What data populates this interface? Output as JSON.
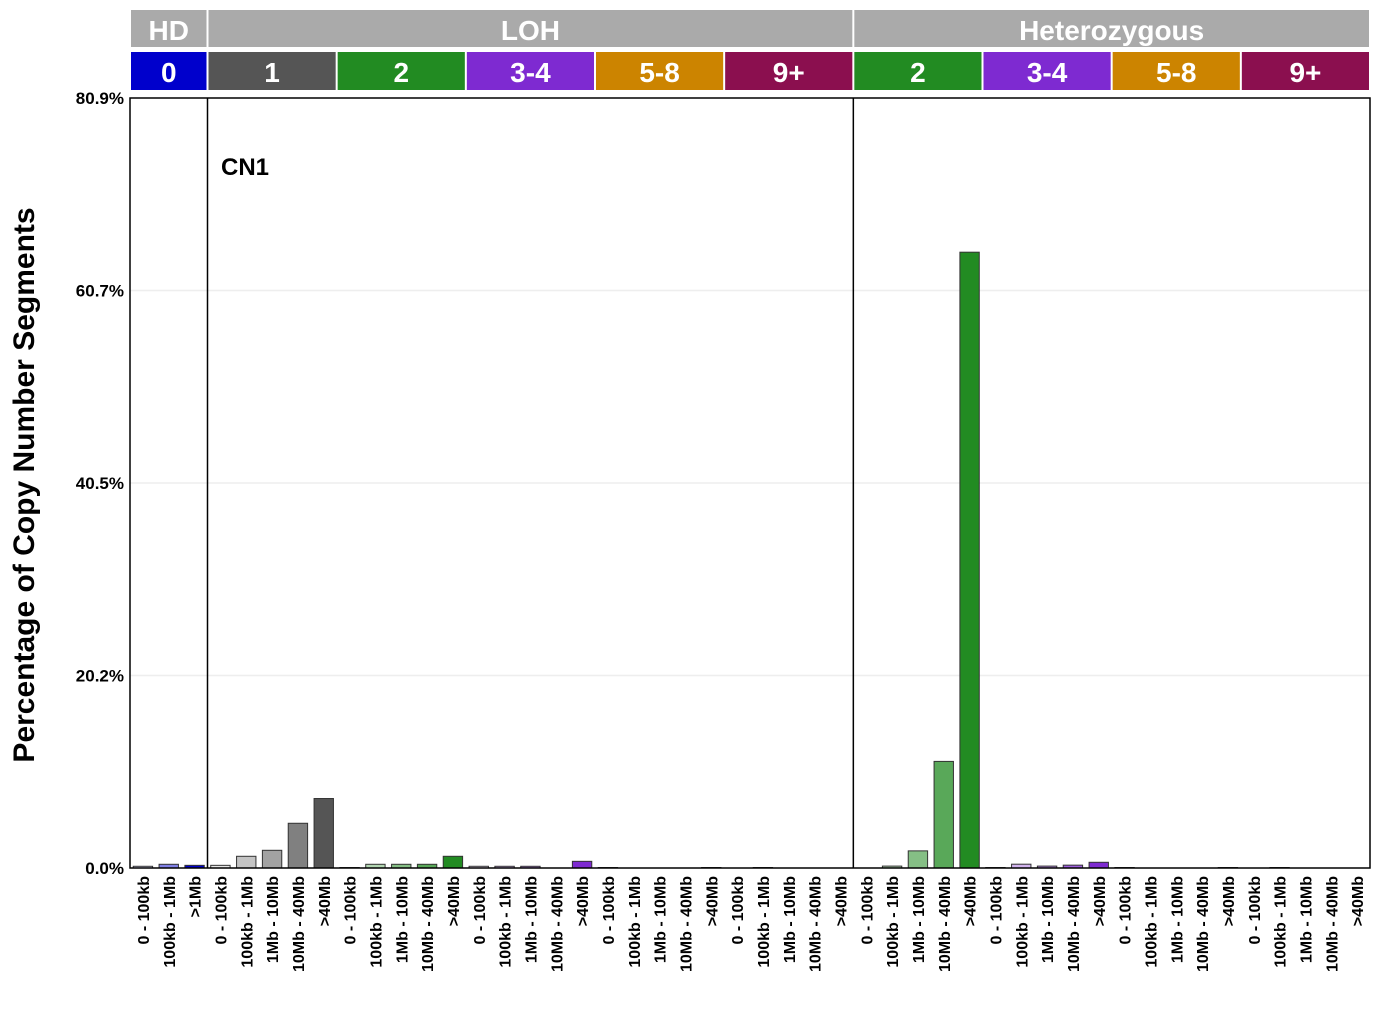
{
  "chart_data": {
    "type": "bar",
    "ylabel": "Percentage of Copy Number Segments",
    "yticks": [
      "0.0%",
      "20.2%",
      "40.5%",
      "60.7%",
      "80.9%"
    ],
    "ylim": [
      0,
      80.9
    ],
    "grid": true,
    "annotation": "CN1",
    "top_groups": [
      {
        "label": "HD",
        "span": 3
      },
      {
        "label": "LOH",
        "span": 25
      },
      {
        "label": "Heterozygous",
        "span": 20
      }
    ],
    "cn_groups": [
      {
        "label": "0",
        "color": "#0000cc",
        "sizes": [
          "0 - 100kb",
          "100kb - 1Mb",
          ">1Mb"
        ],
        "values": [
          0.18,
          0.39,
          0.28
        ]
      },
      {
        "label": "1",
        "color": "#555555",
        "sizes": [
          "0 - 100kb",
          "100kb - 1Mb",
          "1Mb - 10Mb",
          "10Mb - 40Mb",
          ">40Mb"
        ],
        "values": [
          0.28,
          1.23,
          1.86,
          4.7,
          7.3
        ]
      },
      {
        "label": "2",
        "color": "#228b22",
        "sizes": [
          "0 - 100kb",
          "100kb - 1Mb",
          "1Mb - 10Mb",
          "10Mb - 40Mb",
          ">40Mb"
        ],
        "values": [
          0.05,
          0.39,
          0.39,
          0.39,
          1.23
        ]
      },
      {
        "label": "3-4",
        "color": "#7e2ad1",
        "sizes": [
          "0 - 100kb",
          "100kb - 1Mb",
          "1Mb - 10Mb",
          "10Mb - 40Mb",
          ">40Mb"
        ],
        "values": [
          0.18,
          0.18,
          0.18,
          0,
          0.7
        ]
      },
      {
        "label": "5-8",
        "color": "#cc8400",
        "sizes": [
          "0 - 100kb",
          "100kb - 1Mb",
          "1Mb - 10Mb",
          "10Mb - 40Mb",
          ">40Mb"
        ],
        "values": [
          0.05,
          0,
          0,
          0,
          0.05
        ]
      },
      {
        "label": "9+",
        "color": "#8b0f4f",
        "sizes": [
          "0 - 100kb",
          "100kb - 1Mb",
          "1Mb - 10Mb",
          "10Mb - 40Mb",
          ">40Mb"
        ],
        "values": [
          0,
          0.05,
          0,
          0,
          0
        ]
      },
      {
        "label": "2",
        "color": "#228b22",
        "sizes": [
          "0 - 100kb",
          "100kb - 1Mb",
          "1Mb - 10Mb",
          "10Mb - 40Mb",
          ">40Mb"
        ],
        "values": [
          0,
          0.2,
          1.8,
          11.2,
          64.7
        ]
      },
      {
        "label": "3-4",
        "color": "#7e2ad1",
        "sizes": [
          "0 - 100kb",
          "100kb - 1Mb",
          "1Mb - 10Mb",
          "10Mb - 40Mb",
          ">40Mb"
        ],
        "values": [
          0.05,
          0.4,
          0.2,
          0.3,
          0.6
        ]
      },
      {
        "label": "5-8",
        "color": "#cc8400",
        "sizes": [
          "0 - 100kb",
          "100kb - 1Mb",
          "1Mb - 10Mb",
          "10Mb - 40Mb",
          ">40Mb"
        ],
        "values": [
          0.05,
          0,
          0,
          0,
          0.05
        ]
      },
      {
        "label": "9+",
        "color": "#8b0f4f",
        "sizes": [
          "0 - 100kb",
          "100kb - 1Mb",
          "1Mb - 10Mb",
          "10Mb - 40Mb",
          ">40Mb"
        ],
        "values": [
          0,
          0.05,
          0,
          0,
          0
        ]
      }
    ],
    "header_color": "#aaaaaa"
  }
}
